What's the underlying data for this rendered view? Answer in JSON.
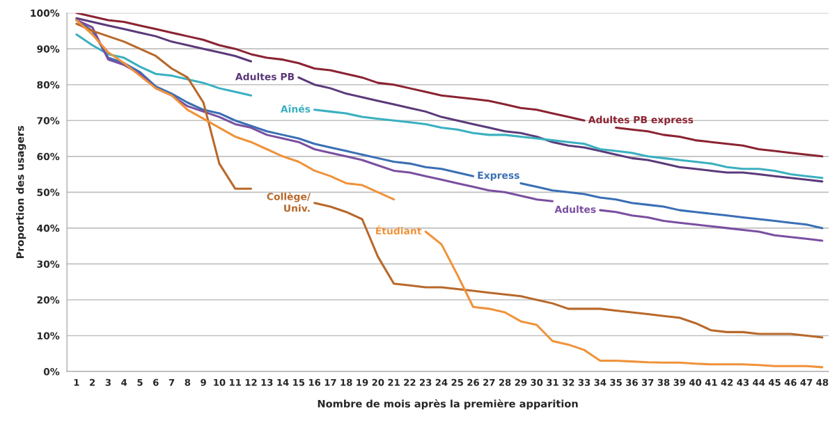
{
  "chart_data": {
    "type": "line",
    "xlabel": "Nombre de mois après la première apparition",
    "ylabel": "Proportion des usagers",
    "categories": [
      "1",
      "2",
      "3",
      "4",
      "5",
      "6",
      "7",
      "8",
      "9",
      "10",
      "11",
      "12",
      "13",
      "14",
      "15",
      "16",
      "17",
      "18",
      "19",
      "20",
      "21",
      "22",
      "23",
      "24",
      "25",
      "26",
      "27",
      "28",
      "29",
      "30",
      "31",
      "32",
      "33",
      "34",
      "35",
      "36",
      "37",
      "38",
      "39",
      "40",
      "41",
      "42",
      "43",
      "44",
      "45",
      "46",
      "47",
      "48"
    ],
    "ylim": [
      0,
      100
    ],
    "yticks": [
      {
        "value": 0,
        "label": "0%"
      },
      {
        "value": 10,
        "label": "10%"
      },
      {
        "value": 20,
        "label": "20%"
      },
      {
        "value": 30,
        "label": "30%"
      },
      {
        "value": 40,
        "label": "40%"
      },
      {
        "value": 50,
        "label": "50%"
      },
      {
        "value": 60,
        "label": "60%"
      },
      {
        "value": 70,
        "label": "70%"
      },
      {
        "value": 80,
        "label": "80%"
      },
      {
        "value": 90,
        "label": "90%"
      },
      {
        "value": 100,
        "label": "100%"
      }
    ],
    "grid": "y",
    "legend": false,
    "series": [
      {
        "name": "Adultes PB express",
        "color": "#8b2332",
        "values": [
          100,
          99,
          98,
          97.5,
          96.5,
          95.5,
          94.5,
          93.5,
          92.5,
          91,
          90,
          88.5,
          87.5,
          87,
          86,
          84.5,
          84,
          83,
          82,
          80.5,
          80,
          79,
          78,
          77,
          76.5,
          76,
          75.5,
          74.5,
          73.5,
          73,
          72,
          71,
          70,
          null,
          68,
          67.5,
          67,
          66,
          65.5,
          64.5,
          64,
          63.5,
          63,
          62,
          61.5,
          61,
          60.5,
          60
        ]
      },
      {
        "name": "Adultes PB",
        "color": "#5b3a7a",
        "values": [
          98.5,
          97.5,
          96.5,
          95.5,
          94.5,
          93.5,
          92,
          91,
          90,
          89,
          88,
          86.5,
          null,
          null,
          82,
          80,
          79,
          77.5,
          76.5,
          75.5,
          74.5,
          73.5,
          72.5,
          71,
          70,
          69,
          68,
          67,
          66.5,
          65.5,
          64,
          63,
          62.5,
          61.5,
          60.5,
          59.5,
          59,
          58,
          57,
          56.5,
          56,
          55.5,
          55.5,
          55,
          54.5,
          54,
          53.5,
          53
        ]
      },
      {
        "name": "Aînés",
        "color": "#3ab0c0",
        "values": [
          94,
          91,
          88.5,
          87.5,
          85,
          83,
          82.5,
          81.5,
          80.5,
          79,
          78,
          77,
          null,
          null,
          null,
          73,
          72.5,
          72,
          71,
          70.5,
          70,
          69.5,
          69,
          68,
          67.5,
          66.5,
          66,
          66,
          65.5,
          65,
          64.5,
          64,
          63.5,
          62,
          61.5,
          61,
          60,
          59.5,
          59,
          58.5,
          58,
          57,
          56.5,
          56.5,
          56,
          55,
          54.5,
          54
        ]
      },
      {
        "name": "Express",
        "color": "#3a6fb5",
        "values": [
          98,
          95,
          87.5,
          86,
          83.5,
          79.5,
          77.5,
          75,
          73,
          72,
          70,
          68.5,
          67,
          66,
          65,
          63.5,
          62.5,
          61.5,
          60.5,
          59.5,
          58.5,
          58,
          57,
          56.5,
          55.5,
          54.5,
          null,
          null,
          52.5,
          51.5,
          50.5,
          50,
          49.5,
          48.5,
          48,
          47,
          46.5,
          46,
          45,
          44.5,
          44,
          43.5,
          43,
          42.5,
          42,
          41.5,
          41,
          40
        ]
      },
      {
        "name": "Adultes",
        "color": "#7a4fa0",
        "values": [
          98,
          96,
          87,
          85.5,
          83,
          79,
          77,
          74,
          72.5,
          71,
          69,
          68,
          66,
          65,
          64,
          62,
          61,
          60,
          59,
          57.5,
          56,
          55.5,
          54.5,
          53.5,
          52.5,
          51.5,
          50.5,
          50,
          49,
          48,
          47.5,
          null,
          null,
          45,
          44.5,
          43.5,
          43,
          42,
          41.5,
          41,
          40.5,
          40,
          39.5,
          39,
          38,
          37.5,
          37,
          36.5
        ]
      },
      {
        "name": "Collège/\nUniv.",
        "color": "#b8682a",
        "values": [
          97,
          95,
          93.5,
          92,
          90,
          88,
          84.5,
          82,
          75,
          58,
          51,
          51,
          null,
          null,
          null,
          47,
          46,
          44.5,
          42.5,
          32,
          24.5,
          24,
          23.5,
          23.5,
          23,
          22.5,
          22,
          21.5,
          21,
          20,
          19,
          17.5,
          17.5,
          17.5,
          17,
          16.5,
          16,
          15.5,
          15,
          13.5,
          11.5,
          11,
          11,
          10.5,
          10.5,
          10.5,
          10,
          9.5
        ]
      },
      {
        "name": "Étudiant",
        "color": "#f0923a",
        "values": [
          98,
          94,
          89,
          86,
          82.5,
          79,
          77,
          73,
          70.5,
          68,
          65.5,
          64,
          62,
          60,
          58.5,
          56,
          54.5,
          52.5,
          52,
          50,
          48,
          null,
          39,
          35.5,
          27,
          18,
          17.5,
          16.5,
          14,
          13,
          8.5,
          7.5,
          6,
          3,
          3,
          2.8,
          2.6,
          2.5,
          2.5,
          2.2,
          2,
          2,
          2,
          1.8,
          1.5,
          1.5,
          1.5,
          1.2
        ]
      }
    ]
  }
}
